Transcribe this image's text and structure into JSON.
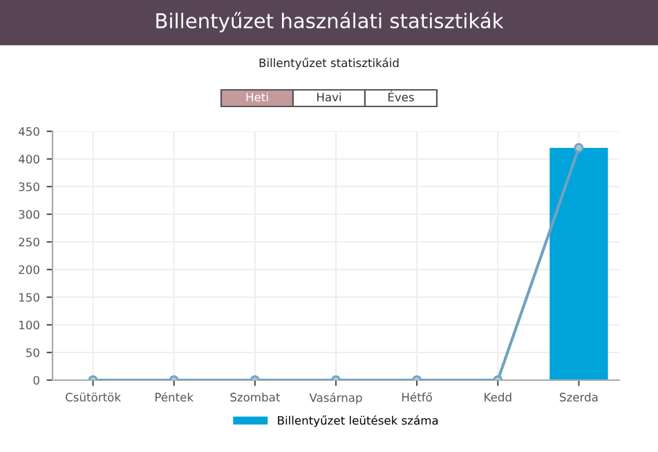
{
  "chart_data": {
    "type": "bar",
    "title": "Billentyűzet használati statisztikák",
    "subtitle": "Billentyűzet statisztikáid",
    "annotations": [
      "Heti",
      "Havi",
      "Éves"
    ],
    "categories": [
      "Csütörtök",
      "Péntek",
      "Szombat",
      "Vasárnap",
      "Hétfő",
      "Kedd",
      "Szerda"
    ],
    "series": [
      {
        "name": "Billentyűzet leütések száma",
        "color": "#00a3da",
        "values": [
          0,
          0,
          0,
          0,
          0,
          0,
          420
        ]
      },
      {
        "type": "line",
        "color": "#6fa3bd",
        "values": [
          0,
          0,
          0,
          0,
          0,
          0,
          420
        ],
        "marker": "circle"
      }
    ],
    "ylim": [
      0,
      450
    ],
    "yticks": [
      0,
      50,
      100,
      150,
      200,
      250,
      300,
      350,
      400,
      450
    ],
    "grid": true,
    "legend": "bottom"
  }
}
